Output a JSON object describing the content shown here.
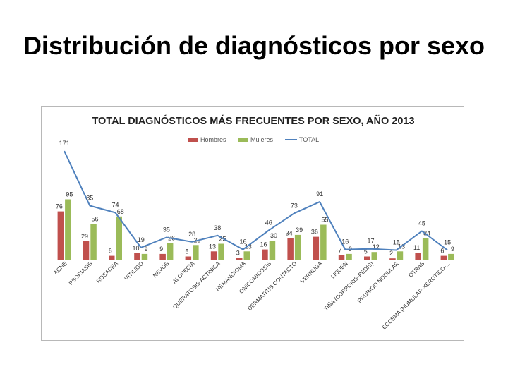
{
  "slide": {
    "title": "Distribución  de diagnósticos por sexo"
  },
  "chart_data": {
    "type": "bar",
    "title": "TOTAL DIAGNÓSTICOS MÁS FRECUENTES POR SEXO, AÑO 2013",
    "xlabel": "",
    "ylabel": "",
    "legend_position": "top",
    "grid": false,
    "categories": [
      "ACNE",
      "PSORIASIS",
      "ROSACEA",
      "VITILIGO",
      "NEVOS",
      "ALOPECIA",
      "QUERATOSIS ACTINICA",
      "HEMANGIOMA",
      "ONICOMICOSIS",
      "DERMATITIS CONTACTO",
      "VERRUGA",
      "LIQUEN",
      "TIÑA (CORPORIS-PEDIS)",
      "PRURIGO NODULAR",
      "OTRAS",
      "ECCEMA (NUMULAR-XEROTICO-..."
    ],
    "series": [
      {
        "name": "Hombres",
        "kind": "bar",
        "color": "#c0504d",
        "values": [
          76,
          29,
          6,
          10,
          9,
          5,
          13,
          3,
          16,
          34,
          36,
          7,
          5,
          2,
          11,
          6
        ]
      },
      {
        "name": "Mujeres",
        "kind": "bar",
        "color": "#9bbb59",
        "values": [
          95,
          56,
          68,
          9,
          26,
          23,
          25,
          13,
          30,
          39,
          55,
          9,
          12,
          13,
          34,
          9
        ]
      },
      {
        "name": "TOTAL",
        "kind": "line",
        "color": "#4f81bd",
        "values": [
          171,
          85,
          74,
          19,
          35,
          28,
          38,
          16,
          46,
          73,
          91,
          16,
          17,
          15,
          45,
          15
        ]
      }
    ],
    "ylim": [
      0,
      190
    ]
  }
}
